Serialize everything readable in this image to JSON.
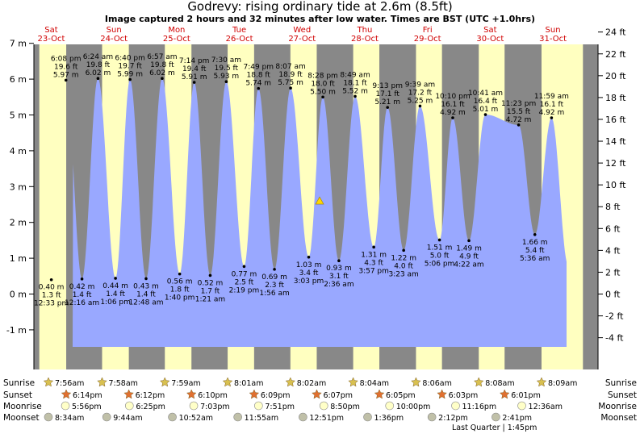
{
  "title": "Godrevy: rising  ordinary tide at 2.6m (8.5ft)",
  "subtitle": "Image captured 2 hours and 32 minutes after low water. Times are BST (UTC +1.0hrs)",
  "chart_data": {
    "type": "area",
    "x_unit": "date/time BST",
    "y_unit": "m",
    "ylim": [
      -1.2,
      8.5
    ],
    "left_axis_ticks": [
      "-1 m",
      "0 m",
      "1 m",
      "2 m",
      "3 m",
      "4 m",
      "5 m",
      "6 m",
      "7 m"
    ],
    "right_axis_ticks": [
      "-4 ft",
      "-2 ft",
      "0 ft",
      "2 ft",
      "4 ft",
      "6 ft",
      "8 ft",
      "10 ft",
      "12 ft",
      "14 ft",
      "16 ft",
      "18 ft",
      "20 ft",
      "22 ft",
      "24 ft"
    ],
    "days": [
      {
        "day": "Sat",
        "date": "23-Oct"
      },
      {
        "day": "Sun",
        "date": "24-Oct"
      },
      {
        "day": "Mon",
        "date": "25-Oct"
      },
      {
        "day": "Tue",
        "date": "26-Oct"
      },
      {
        "day": "Wed",
        "date": "27-Oct"
      },
      {
        "day": "Thu",
        "date": "28-Oct"
      },
      {
        "day": "Fri",
        "date": "29-Oct"
      },
      {
        "day": "Sat",
        "date": "30-Oct"
      },
      {
        "day": "Sun",
        "date": "31-Oct"
      }
    ],
    "high_tides": [
      {
        "time": "6:08 pm",
        "ft": "19.6 ft",
        "m": 5.97,
        "label": "5.97 m"
      },
      {
        "time": "6:24 am",
        "ft": "19.8 ft",
        "m": 6.02,
        "label": "6.02 m"
      },
      {
        "time": "6:40 pm",
        "ft": "19.7 ft",
        "m": 5.99,
        "label": "5.99 m"
      },
      {
        "time": "6:57 am",
        "ft": "19.8 ft",
        "m": 6.02,
        "label": "6.02 m"
      },
      {
        "time": "7:14 pm",
        "ft": "19.4 ft",
        "m": 5.91,
        "label": "5.91 m"
      },
      {
        "time": "7:30 am",
        "ft": "19.5 ft",
        "m": 5.93,
        "label": "5.93 m"
      },
      {
        "time": "7:49 pm",
        "ft": "18.8 ft",
        "m": 5.74,
        "label": "5.74 m"
      },
      {
        "time": "8:07 am",
        "ft": "18.9 ft",
        "m": 5.75,
        "label": "5.75 m"
      },
      {
        "time": "8:28 pm",
        "ft": "18.0 ft",
        "m": 5.5,
        "label": "5.50 m"
      },
      {
        "time": "8:49 am",
        "ft": "18.1 ft",
        "m": 5.52,
        "label": "5.52 m"
      },
      {
        "time": "9:13 pm",
        "ft": "17.1 ft",
        "m": 5.21,
        "label": "5.21 m"
      },
      {
        "time": "9:39 am",
        "ft": "17.2 ft",
        "m": 5.25,
        "label": "5.25 m"
      },
      {
        "time": "10:10 pm",
        "ft": "16.1 ft",
        "m": 4.92,
        "label": "4.92 m"
      },
      {
        "time": "10:41 am",
        "ft": "16.4 ft",
        "m": 5.01,
        "label": "5.01 m"
      },
      {
        "time": "11:23 pm",
        "ft": "15.5 ft",
        "m": 4.72,
        "label": "4.72 m"
      },
      {
        "time": "11:59 am",
        "ft": "16.1 ft",
        "m": 4.92,
        "label": "4.92 m"
      }
    ],
    "low_tides": [
      {
        "time": "12:16 am",
        "ft": "1.4 ft",
        "m": 0.42,
        "label": "0.42 m"
      },
      {
        "time": "12:33 pm",
        "ft": "1.3 ft",
        "m": 0.4,
        "label": "0.40 m"
      },
      {
        "time": "12:48 am",
        "ft": "1.4 ft",
        "m": 0.43,
        "label": "0.43 m"
      },
      {
        "time": "1:06 pm",
        "ft": "1.4 ft",
        "m": 0.44,
        "label": "0.44 m"
      },
      {
        "time": "1:21 am",
        "ft": "1.7 ft",
        "m": 0.52,
        "label": "0.52 m"
      },
      {
        "time": "1:40 pm",
        "ft": "1.8 ft",
        "m": 0.56,
        "label": "0.56 m"
      },
      {
        "time": "1:56 am",
        "ft": "2.3 ft",
        "m": 0.69,
        "label": "0.69 m"
      },
      {
        "time": "2:19 pm",
        "ft": "2.5 ft",
        "m": 0.77,
        "label": "0.77 m"
      },
      {
        "time": "2:36 am",
        "ft": "3.1 ft",
        "m": 0.93,
        "label": "0.93 m"
      },
      {
        "time": "3:03 pm",
        "ft": "3.4 ft",
        "m": 1.03,
        "label": "1.03 m"
      },
      {
        "time": "3:23 am",
        "ft": "4.0 ft",
        "m": 1.22,
        "label": "1.22 m"
      },
      {
        "time": "3:57 pm",
        "ft": "4.3 ft",
        "m": 1.31,
        "label": "1.31 m"
      },
      {
        "time": "4:22 am",
        "ft": "4.9 ft",
        "m": 1.49,
        "label": "1.49 m"
      },
      {
        "time": "5:06 pm",
        "ft": "5.0 ft",
        "m": 1.51,
        "label": "1.51 m"
      },
      {
        "time": "5:36 am",
        "ft": "5.4 ft",
        "m": 1.66,
        "label": "1.66 m"
      }
    ],
    "current": {
      "m": 2.6
    },
    "sunrise": [
      "7:56am",
      "7:58am",
      "7:59am",
      "8:01am",
      "8:02am",
      "8:04am",
      "8:06am",
      "8:08am",
      "8:09am"
    ],
    "sunset": [
      "6:14pm",
      "6:12pm",
      "6:10pm",
      "6:09pm",
      "6:07pm",
      "6:05pm",
      "6:03pm",
      "6:01pm"
    ],
    "moonrise": [
      "5:56pm",
      "6:25pm",
      "7:03pm",
      "7:51pm",
      "8:50pm",
      "10:00pm",
      "11:16pm",
      "12:36am"
    ],
    "moonset": [
      "8:34am",
      "9:44am",
      "10:52am",
      "11:55am",
      "12:51pm",
      "1:36pm",
      "2:12pm",
      "2:41pm"
    ],
    "row_labels": {
      "sunrise": "Sunrise",
      "sunset": "Sunset",
      "moonrise": "Moonrise",
      "moonset": "Moonset"
    },
    "moon_phase": "Last Quarter | 1:45pm",
    "colors": {
      "day": "#ffffc0",
      "night": "#888888",
      "water": "#99a8ff",
      "day_label": "#d00000",
      "current_marker": "#ffd700"
    }
  }
}
